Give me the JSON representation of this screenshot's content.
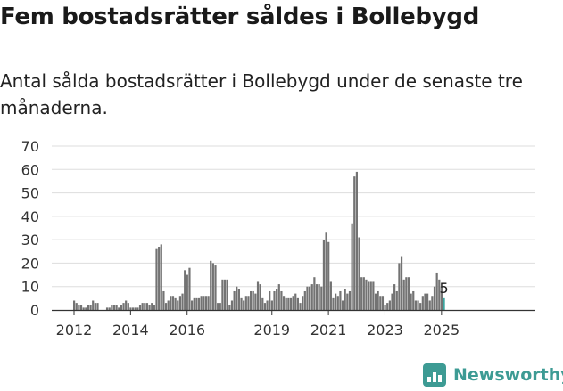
{
  "title": "Fem bostadsrätter såldes i Bollebygd",
  "subtitle": "Antal sålda bostadsrätter i Bollebygd under de senaste tre månaderna.",
  "brand": {
    "name": "Newsworthy",
    "icon": "bar-chart-logo-icon",
    "color": "#3d9b94"
  },
  "chart_data": {
    "type": "bar",
    "title": "",
    "xlabel": "",
    "ylabel": "",
    "ylim": [
      0,
      70
    ],
    "yticks": [
      0,
      10,
      20,
      30,
      40,
      50,
      60,
      70
    ],
    "xticks": [
      "2012",
      "2014",
      "2016",
      "2019",
      "2021",
      "2023",
      "2025"
    ],
    "grid": true,
    "bar_color": "#737373",
    "highlight_color": "#3aa6a0",
    "last_value_label": "5",
    "series": [
      {
        "values": [
          4,
          3,
          2,
          2,
          1,
          1,
          2,
          2,
          4,
          3,
          3,
          0,
          0,
          0,
          1,
          1,
          2,
          2,
          2,
          1,
          2,
          3,
          4,
          3,
          1,
          1,
          1,
          1,
          2,
          3,
          3,
          3,
          2,
          3,
          2,
          26,
          27,
          28,
          8,
          3,
          4,
          6,
          6,
          5,
          4,
          6,
          7,
          17,
          15,
          18,
          4,
          5,
          5,
          5,
          6,
          6,
          6,
          6,
          21,
          20,
          19,
          3,
          3,
          13,
          13,
          13,
          2,
          4,
          8,
          10,
          9,
          5,
          4,
          6,
          6,
          8,
          8,
          7,
          12,
          11,
          5,
          3,
          4,
          8,
          4,
          8,
          9,
          11,
          8,
          6,
          5,
          5,
          5,
          6,
          7,
          5,
          3,
          6,
          8,
          10,
          10,
          11,
          14,
          11,
          11,
          10,
          30,
          33,
          29,
          12,
          5,
          7,
          6,
          8,
          4,
          9,
          7,
          8,
          37,
          57,
          59,
          31,
          14,
          14,
          13,
          12,
          12,
          12,
          7,
          8,
          6,
          6,
          2,
          3,
          4,
          7,
          11,
          8,
          20,
          23,
          13,
          14,
          14,
          7,
          8,
          4,
          4,
          3,
          6,
          7,
          7,
          4,
          6,
          10,
          16,
          13,
          10,
          5
        ]
      }
    ]
  }
}
